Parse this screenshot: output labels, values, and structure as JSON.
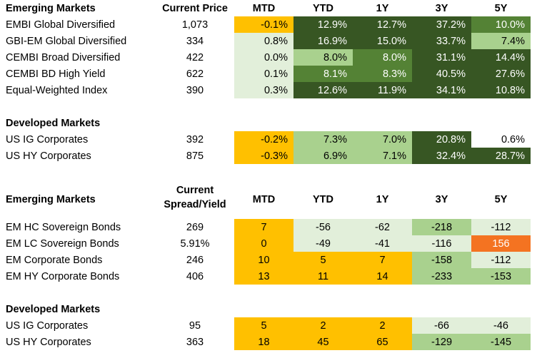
{
  "colors": {
    "orange": "#FFC000",
    "red_orange": "#F47321",
    "pale_green": "#E2EFDA",
    "light_green": "#A9D18E",
    "mid_green": "#548235",
    "dark_green": "#375623",
    "white": "#FFFFFF"
  },
  "section1": {
    "title": "Emerging Markets",
    "price_header": "Current Price",
    "col_headers": [
      "MTD",
      "YTD",
      "1Y",
      "3Y",
      "5Y"
    ],
    "rows": [
      {
        "name": "EMBI Global Diversified",
        "price": "1,073",
        "values": [
          "-0.1%",
          "12.9%",
          "12.7%",
          "37.2%",
          "10.0%"
        ],
        "colors": [
          "orange",
          "dark_green",
          "dark_green",
          "dark_green",
          "mid_green"
        ]
      },
      {
        "name": "GBI-EM Global Diversified",
        "price": "334",
        "values": [
          "0.8%",
          "16.9%",
          "15.0%",
          "33.7%",
          "7.4%"
        ],
        "colors": [
          "pale_green",
          "dark_green",
          "dark_green",
          "dark_green",
          "light_green"
        ]
      },
      {
        "name": "CEMBI Broad Diversified",
        "price": "422",
        "values": [
          "0.0%",
          "8.0%",
          "8.0%",
          "31.1%",
          "14.4%"
        ],
        "colors": [
          "pale_green",
          "light_green",
          "mid_green",
          "dark_green",
          "dark_green"
        ]
      },
      {
        "name": "CEMBI BD High Yield",
        "price": "622",
        "values": [
          "0.1%",
          "8.1%",
          "8.3%",
          "40.5%",
          "27.6%"
        ],
        "colors": [
          "pale_green",
          "mid_green",
          "mid_green",
          "dark_green",
          "dark_green"
        ]
      },
      {
        "name": "Equal-Weighted Index",
        "price": "390",
        "values": [
          "0.3%",
          "12.6%",
          "11.9%",
          "34.1%",
          "10.8%"
        ],
        "colors": [
          "pale_green",
          "dark_green",
          "dark_green",
          "dark_green",
          "dark_green"
        ]
      }
    ]
  },
  "section2": {
    "title": "Developed Markets",
    "rows": [
      {
        "name": "US IG Corporates",
        "price": "392",
        "values": [
          "-0.2%",
          "7.3%",
          "7.0%",
          "20.8%",
          "0.6%"
        ],
        "colors": [
          "orange",
          "light_green",
          "light_green",
          "dark_green",
          "white"
        ]
      },
      {
        "name": "US HY Corporates",
        "price": "875",
        "values": [
          "-0.3%",
          "6.9%",
          "7.1%",
          "32.4%",
          "28.7%"
        ],
        "colors": [
          "orange",
          "light_green",
          "light_green",
          "dark_green",
          "dark_green"
        ]
      }
    ]
  },
  "section3": {
    "title": "Emerging Markets",
    "price_header_line1": "Current",
    "price_header_line2": "Spread/Yield",
    "col_headers": [
      "MTD",
      "YTD",
      "1Y",
      "3Y",
      "5Y"
    ],
    "rows": [
      {
        "name": "EM HC Sovereign Bonds",
        "price": "269",
        "values": [
          "7",
          "-56",
          "-62",
          "-218",
          "-112"
        ],
        "colors": [
          "orange",
          "pale_green",
          "pale_green",
          "light_green",
          "pale_green"
        ]
      },
      {
        "name": "EM LC Sovereign Bonds",
        "price": "5.91%",
        "values": [
          "0",
          "-49",
          "-41",
          "-116",
          "156"
        ],
        "colors": [
          "orange",
          "pale_green",
          "pale_green",
          "pale_green",
          "red_orange"
        ]
      },
      {
        "name": "EM Corporate Bonds",
        "price": "246",
        "values": [
          "10",
          "5",
          "7",
          "-158",
          "-112"
        ],
        "colors": [
          "orange",
          "orange",
          "orange",
          "light_green",
          "pale_green"
        ]
      },
      {
        "name": "EM HY Corporate Bonds",
        "price": "406",
        "values": [
          "13",
          "11",
          "14",
          "-233",
          "-153"
        ],
        "colors": [
          "orange",
          "orange",
          "orange",
          "light_green",
          "light_green"
        ]
      }
    ]
  },
  "section4": {
    "title": "Developed Markets",
    "rows": [
      {
        "name": "US IG Corporates",
        "price": "95",
        "values": [
          "5",
          "2",
          "2",
          "-66",
          "-46"
        ],
        "colors": [
          "orange",
          "orange",
          "orange",
          "pale_green",
          "pale_green"
        ]
      },
      {
        "name": "US HY Corporates",
        "price": "363",
        "values": [
          "18",
          "45",
          "65",
          "-129",
          "-145"
        ],
        "colors": [
          "orange",
          "orange",
          "orange",
          "light_green",
          "light_green"
        ]
      }
    ]
  }
}
